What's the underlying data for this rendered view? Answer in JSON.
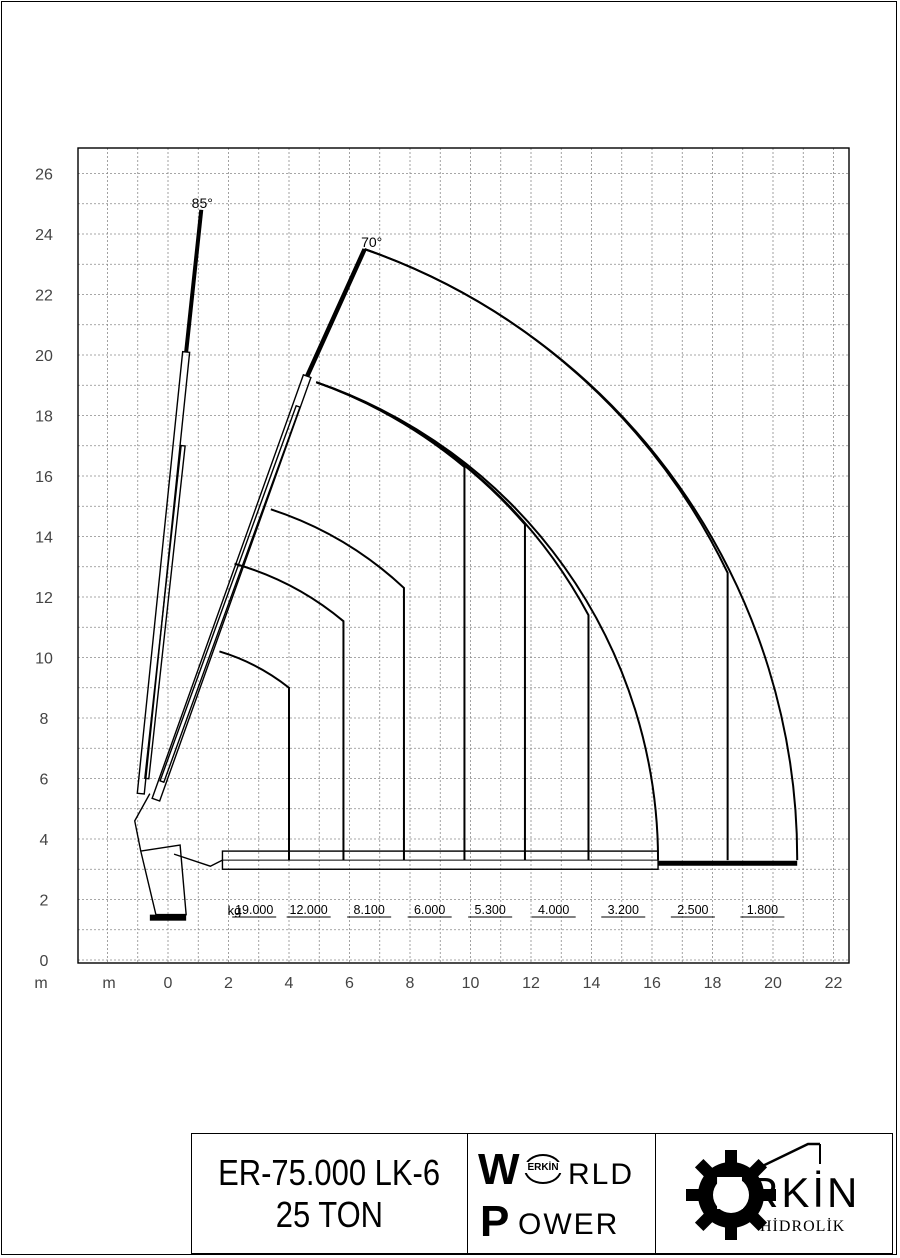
{
  "chart_data": {
    "type": "line",
    "x_axis": {
      "unit": "m",
      "range": [
        -3,
        22
      ],
      "tick_labels": [
        "0",
        "2",
        "4",
        "6",
        "8",
        "10",
        "12",
        "14",
        "16",
        "18",
        "20",
        "22"
      ],
      "tick_values": [
        0,
        2,
        4,
        6,
        8,
        10,
        12,
        14,
        16,
        18,
        20,
        22
      ]
    },
    "y_axis": {
      "unit": "m",
      "range": [
        0,
        27
      ],
      "tick_labels": [
        "0",
        "2",
        "4",
        "6",
        "8",
        "10",
        "12",
        "14",
        "16",
        "18",
        "20",
        "22",
        "24",
        "26"
      ],
      "tick_values": [
        0,
        2,
        4,
        6,
        8,
        10,
        12,
        14,
        16,
        18,
        20,
        22,
        24,
        26
      ]
    },
    "grid": true,
    "angle_labels": [
      {
        "text": "85°",
        "x": 1.0,
        "y": 24.8
      },
      {
        "text": "70°",
        "x": 6.6,
        "y": 23.5
      }
    ],
    "boom_extensions": [
      {
        "reach": 4.0,
        "load": "19.000",
        "arc_start": [
          1.7,
          10.2
        ],
        "vline_top": 9.0
      },
      {
        "reach": 5.8,
        "load": "12.000",
        "arc_start": [
          2.2,
          13.1
        ],
        "vline_top": 11.2
      },
      {
        "reach": 7.8,
        "load": "8.100",
        "arc_start": [
          3.4,
          14.9
        ],
        "vline_top": 12.3
      },
      {
        "reach": 9.8,
        "load": "6.000",
        "arc_start": [
          4.9,
          19.1
        ],
        "vline_top": 16.3
      },
      {
        "reach": 11.8,
        "load": "5.300",
        "arc_start": [
          4.9,
          19.1
        ],
        "vline_top": 14.4
      },
      {
        "reach": 13.9,
        "load": "4.000",
        "arc_start": [
          4.9,
          19.1
        ],
        "vline_top": 11.4
      },
      {
        "reach": 16.2,
        "load": "3.200",
        "arc_start": [
          4.9,
          19.1
        ],
        "vline_top": null
      },
      {
        "reach": 18.5,
        "load": "2.500",
        "arc_start": [
          6.5,
          23.5
        ],
        "vline_top": 12.8
      },
      {
        "reach": 20.8,
        "load": "1.800",
        "arc_start": [
          6.5,
          23.5
        ],
        "vline_top": null
      }
    ],
    "load_unit": "kg",
    "arc_centre": [
      -0.9,
      3.9
    ]
  },
  "title_block": {
    "model_line1": "ER-75.000  LK-6",
    "model_line2": "25 TON",
    "brand_w": "W",
    "brand_world_rest": "RLD",
    "brand_badge": "ERKİN",
    "brand_p": "P",
    "brand_power_rest": "OWER",
    "maker_name": "RKİN",
    "maker_sub": "HİDROLİK"
  }
}
